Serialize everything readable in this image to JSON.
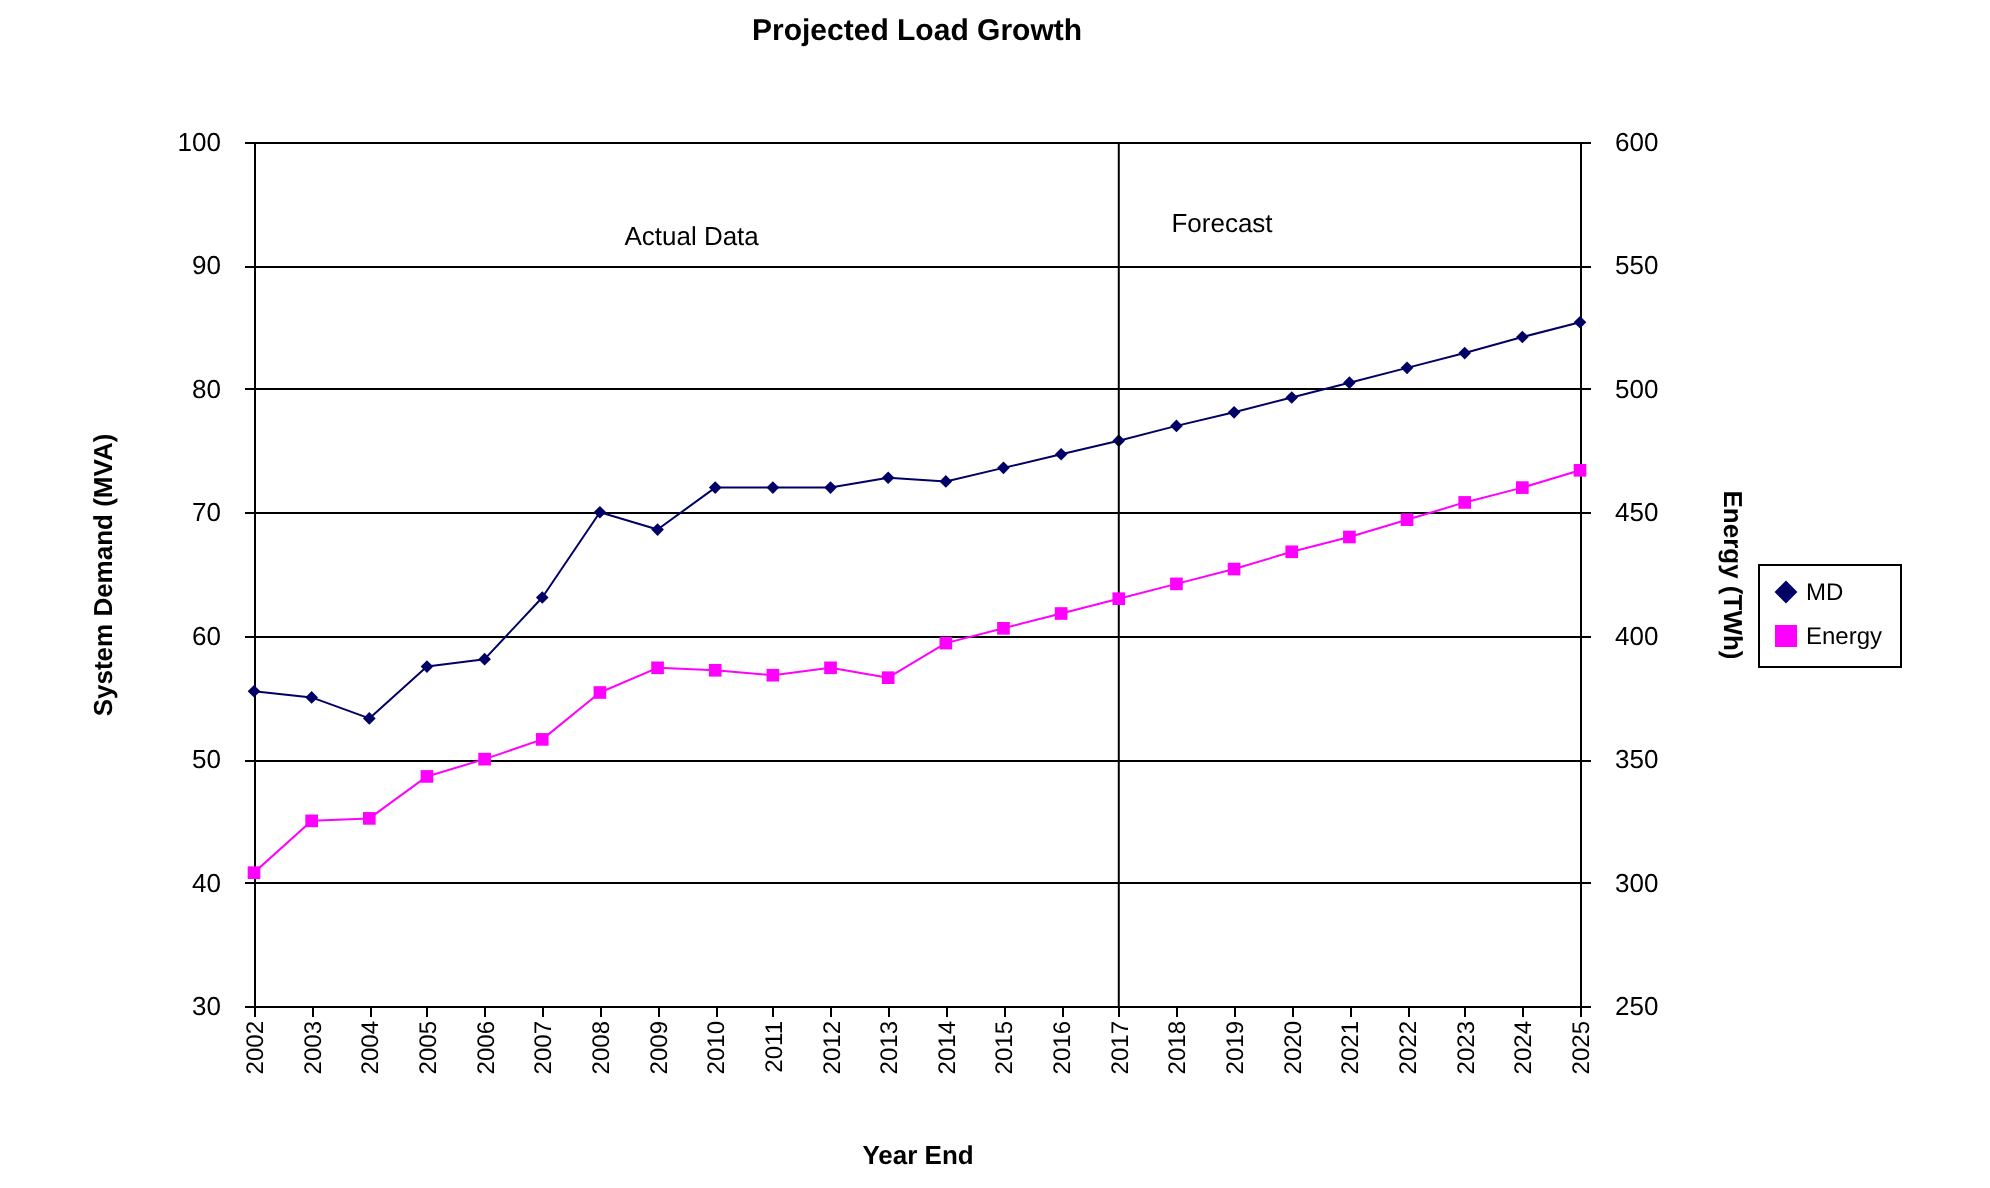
{
  "chart_data": {
    "type": "line",
    "title": "Projected Load Growth",
    "xlabel": "Year End",
    "ylabel": "System Demand (MVA)",
    "y2label": "Energy (TWh)",
    "categories": [
      "2002",
      "2003",
      "2004",
      "2005",
      "2006",
      "2007",
      "2008",
      "2009",
      "2010",
      "2011",
      "2012",
      "2013",
      "2014",
      "2015",
      "2016",
      "2017",
      "2018",
      "2019",
      "2020",
      "2021",
      "2022",
      "2023",
      "2024",
      "2025"
    ],
    "series": [
      {
        "name": "MD",
        "color": "#000066",
        "marker": "diamond",
        "values": [
          55.5,
          55,
          53.3,
          57.5,
          58.1,
          63.1,
          70,
          68.6,
          72,
          72,
          72,
          72.8,
          72.5,
          73.6,
          74.7,
          75.8,
          77,
          78.1,
          79.3,
          80.5,
          81.7,
          82.9,
          84.2,
          85.4
        ]
      },
      {
        "name": "Energy",
        "color": "#ff00ff",
        "marker": "square",
        "axis": "y2",
        "values": [
          304,
          325,
          326,
          343,
          350,
          358,
          377,
          387,
          386,
          384,
          387,
          383,
          397,
          403,
          409,
          415,
          421,
          427,
          434,
          440,
          447,
          454,
          460,
          467
        ]
      }
    ],
    "ylim": [
      30,
      100
    ],
    "yticks": [
      30,
      40,
      50,
      60,
      70,
      80,
      90,
      100
    ],
    "y2lim": [
      250,
      600
    ],
    "y2ticks": [
      250,
      300,
      350,
      400,
      450,
      500,
      550,
      600
    ],
    "grid": "y",
    "legend": "right",
    "line_style": "solid",
    "ref_lines": [
      {
        "axis": "x",
        "value": "2017",
        "color": "#000000"
      }
    ],
    "annotations": [
      "Actual Data",
      "Forecast"
    ]
  }
}
